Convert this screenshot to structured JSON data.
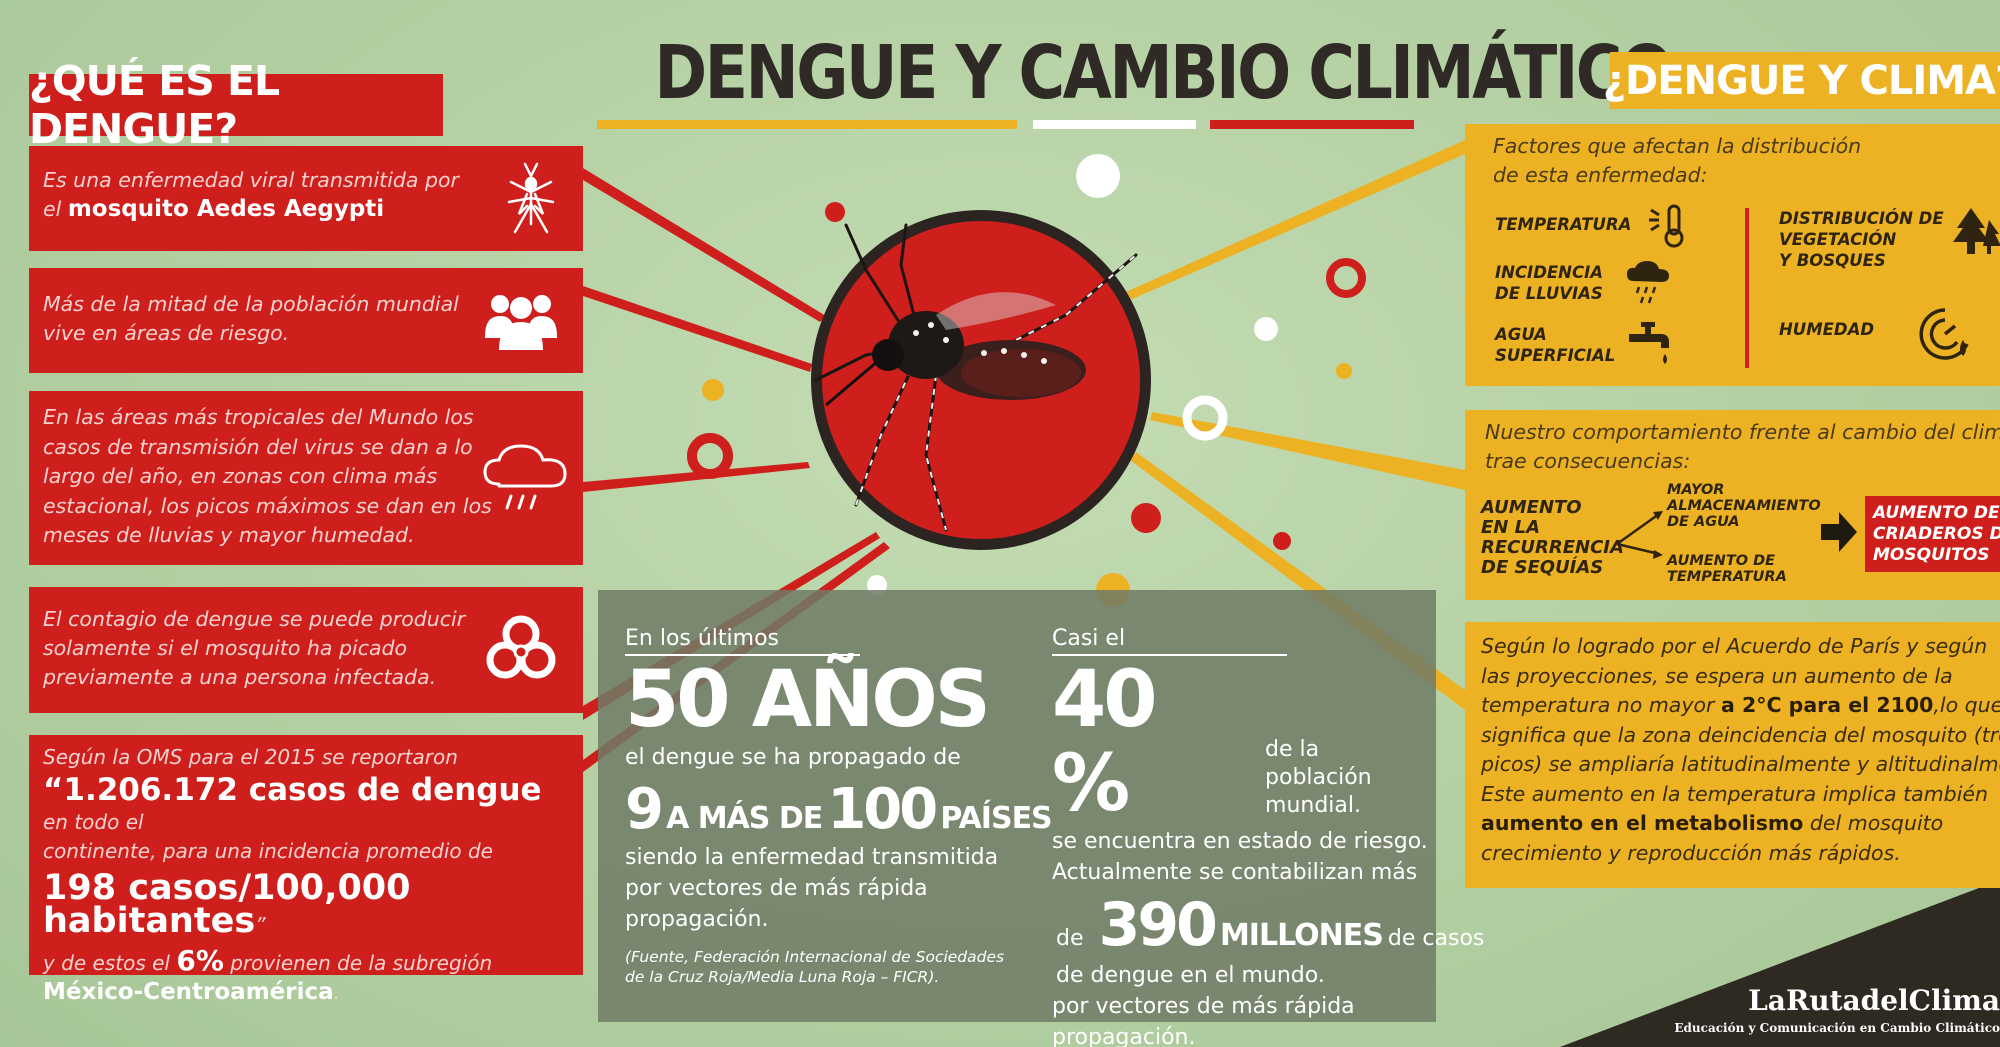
{
  "title": "DENGUE Y CAMBIO CLIMÁTICO",
  "left": {
    "heading": "¿QUÉ ES EL DENGUE?",
    "box1": {
      "pre": "Es una enfermedad viral transmitida por",
      "el": "el",
      "bold": "mosquito Aedes Aegypti",
      "icon": "mosquito-icon"
    },
    "box2": {
      "line1": "Más de la mitad de la población mundial",
      "line2": "vive en áreas de riesgo.",
      "icon": "people-icon"
    },
    "box3": {
      "lines": [
        "En las áreas más tropicales del Mundo los",
        "casos de transmisión del virus se dan a lo",
        "largo del año, en zonas con clima más",
        "estacional, los picos máximos se dan en los",
        "meses de lluvias y mayor humedad."
      ],
      "icon": "rain-cloud-icon"
    },
    "box4": {
      "lines": [
        "El contagio de dengue se puede producir",
        "solamente si el mosquito ha picado",
        "previamente a una persona infectada."
      ],
      "icon": "biohazard-icon"
    },
    "box5": {
      "line1": "Según la OMS para el 2015 se reportaron",
      "cases": "“1.206.172 casos de dengue",
      "cases_tail": "en todo el",
      "line3": "continente, para una incidencia promedio de",
      "rate": "198 casos/100,000 habitantes",
      "rate_tail": "”",
      "line5_pre": "y de estos el",
      "pct": "6%",
      "line5_post": "provienen de la subregión",
      "region": "México-Centroamérica",
      "region_tail": "."
    }
  },
  "center": {
    "stat1": {
      "label": "En los últimos",
      "big": "50 AÑOS",
      "line1": "el dengue se ha propagado de",
      "n1": "9",
      "mid": "A MÁS DE",
      "n2": "100",
      "countries": "PAÍSES",
      "line3": "siendo la enfermedad transmitida",
      "line4": "por vectores de más rápida",
      "line5": "propagación.",
      "source1": "(Fuente, Federación Internacional de Sociedades",
      "source2": "de la Cruz Roja/Media Luna Roja – FICR)."
    },
    "stat2": {
      "label": "Casi el",
      "big": "40 %",
      "side1": "de la población",
      "side2": "mundial.",
      "line1": "se encuentra en estado de riesgo.",
      "line2": "Actualmente se contabilizan más",
      "de": "de",
      "n": "390",
      "millones": "MILLONES",
      "tail": "de casos",
      "line4": "de dengue en el mundo.",
      "line5": "por vectores de más rápida",
      "line6": "propagación."
    }
  },
  "right": {
    "heading": "¿DENGUE Y CLIMA?",
    "factors_intro1": "Factores que afectan la distribución",
    "factors_intro2": "de esta enfermedad:",
    "factors": {
      "temp": "TEMPERATURA",
      "rain": [
        "INCIDENCIA",
        "DE LLUVIAS"
      ],
      "water": [
        "AGUA",
        "SUPERFICIAL"
      ],
      "veg": [
        "DISTRIBUCIÓN DE",
        "VEGETACIÓN",
        "Y BOSQUES"
      ],
      "hum": "HUMEDAD"
    },
    "behaviour_intro1": "Nuestro comportamiento frente al cambio del clima",
    "behaviour_intro2": "trae consecuencias:",
    "flow": {
      "start": [
        "AUMENTO",
        "EN LA",
        "RECURRENCIA",
        "DE SEQUÍAS"
      ],
      "top": [
        "MAYOR",
        "ALMACENAMIENTO",
        "DE AGUA"
      ],
      "bottom": [
        "AUMENTO DE",
        "TEMPERATURA"
      ],
      "result": [
        "AUMENTO DE",
        "CRIADEROS DE",
        "MOSQUITOS"
      ]
    },
    "paris": {
      "l1": "Según lo logrado por el Acuerdo de París y según",
      "l2": "las proyecciones, se espera un aumento de la",
      "l3_pre": "temperatura no mayor",
      "l3_bold": "a 2°C para el 2100",
      "l3_post": ",lo que",
      "l4": "significa que la zona deincidencia del mosquito (tró-",
      "l5": "picos) se ampliaría latitudinalmente y altitudinalmente.",
      "l6": "Este aumento en la temperatura implica también",
      "l7_bold": "aumento en el metabolismo",
      "l7_post": "del mosquito",
      "l8": "crecimiento y reproducción más rápidos."
    }
  },
  "logo": {
    "name": "LaRutadelClima",
    "tagline": "Educación y Comunicación en Cambio Climático"
  },
  "colors": {
    "red": "#cf1f1c",
    "yellow": "#edb223",
    "green": "#b9d4a9",
    "grey": "#707c67"
  }
}
